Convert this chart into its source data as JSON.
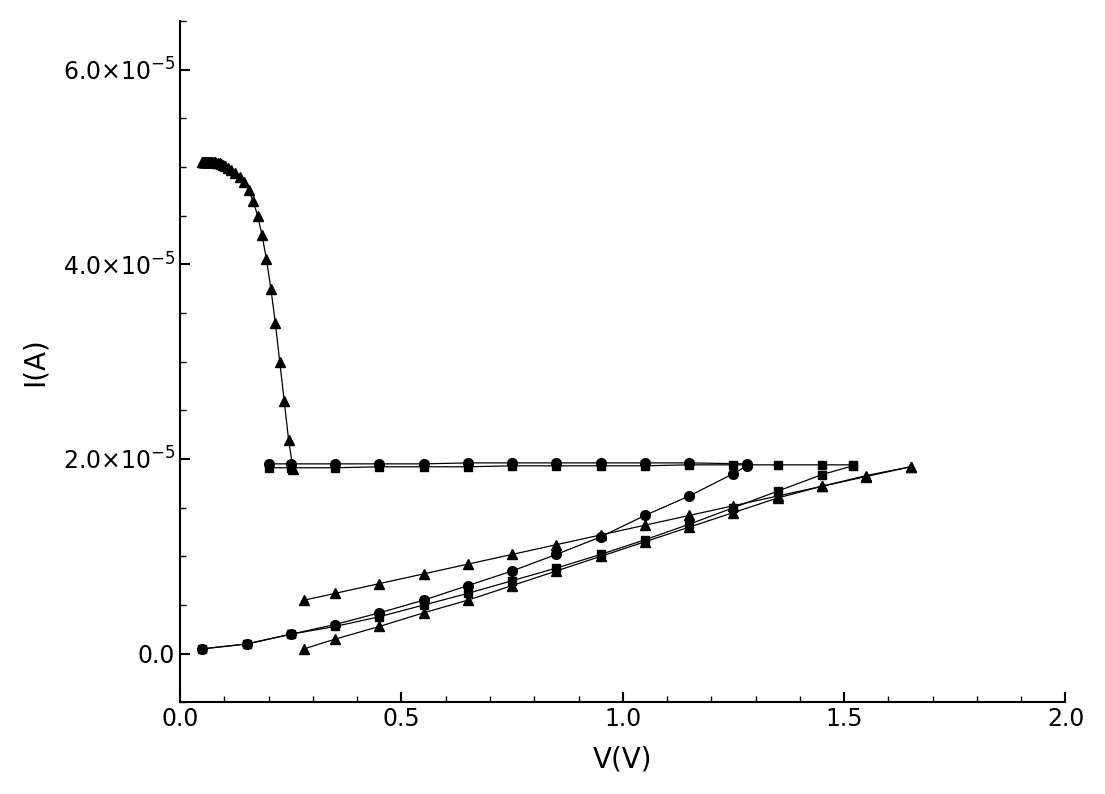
{
  "xlabel": "V(V)",
  "ylabel": "I(A)",
  "xlim": [
    0.0,
    2.0
  ],
  "ylim": [
    -5e-06,
    6.5e-05
  ],
  "yticks": [
    0.0,
    2e-05,
    4e-05,
    6e-05
  ],
  "xticks": [
    0.0,
    0.5,
    1.0,
    1.5,
    2.0
  ],
  "background_color": "#ffffff",
  "circle_fwd_v": [
    0.05,
    0.15,
    0.25,
    0.35,
    0.45,
    0.55,
    0.65,
    0.75,
    0.85,
    0.95,
    1.05,
    1.15,
    1.25,
    1.28
  ],
  "circle_fwd_i": [
    5e-07,
    1e-06,
    2e-06,
    3e-06,
    4.2e-06,
    5.5e-06,
    7e-06,
    8.5e-06,
    1.02e-05,
    1.2e-05,
    1.42e-05,
    1.62e-05,
    1.85e-05,
    1.93e-05
  ],
  "circle_rev_v": [
    1.28,
    1.15,
    1.05,
    0.95,
    0.85,
    0.75,
    0.65,
    0.55,
    0.45,
    0.35,
    0.25,
    0.2
  ],
  "circle_rev_i": [
    1.95e-05,
    1.96e-05,
    1.96e-05,
    1.96e-05,
    1.96e-05,
    1.96e-05,
    1.96e-05,
    1.95e-05,
    1.95e-05,
    1.95e-05,
    1.95e-05,
    1.95e-05
  ],
  "square_fwd_v": [
    0.05,
    0.15,
    0.25,
    0.35,
    0.45,
    0.55,
    0.65,
    0.75,
    0.85,
    0.95,
    1.05,
    1.15,
    1.25,
    1.35,
    1.45,
    1.52
  ],
  "square_fwd_i": [
    5e-07,
    1e-06,
    2e-06,
    2.8e-06,
    3.8e-06,
    5e-06,
    6.2e-06,
    7.5e-06,
    8.8e-06,
    1.02e-05,
    1.17e-05,
    1.33e-05,
    1.5e-05,
    1.67e-05,
    1.84e-05,
    1.93e-05
  ],
  "square_rev_v": [
    1.52,
    1.45,
    1.35,
    1.25,
    1.15,
    1.05,
    0.95,
    0.85,
    0.75,
    0.65,
    0.55,
    0.45,
    0.35,
    0.25,
    0.2
  ],
  "square_rev_i": [
    1.94e-05,
    1.94e-05,
    1.94e-05,
    1.94e-05,
    1.94e-05,
    1.93e-05,
    1.93e-05,
    1.93e-05,
    1.93e-05,
    1.92e-05,
    1.92e-05,
    1.92e-05,
    1.91e-05,
    1.91e-05,
    1.91e-05
  ],
  "tri_fwd_v": [
    0.28,
    0.35,
    0.45,
    0.55,
    0.65,
    0.75,
    0.85,
    0.95,
    1.05,
    1.15,
    1.25,
    1.35,
    1.45,
    1.55,
    1.65
  ],
  "tri_fwd_i": [
    5e-07,
    1.5e-06,
    2.8e-06,
    4.2e-06,
    5.5e-06,
    7e-06,
    8.5e-06,
    1e-05,
    1.15e-05,
    1.3e-05,
    1.45e-05,
    1.6e-05,
    1.72e-05,
    1.83e-05,
    1.92e-05
  ],
  "spike_v": [
    0.255,
    0.245,
    0.235,
    0.225,
    0.215,
    0.205,
    0.195,
    0.185,
    0.175,
    0.165,
    0.155,
    0.145,
    0.135,
    0.125,
    0.115,
    0.108,
    0.102,
    0.098,
    0.093,
    0.089,
    0.085,
    0.082,
    0.079,
    0.076,
    0.073,
    0.07,
    0.068,
    0.066,
    0.064,
    0.062,
    0.06,
    0.059,
    0.058,
    0.057,
    0.056,
    0.055,
    0.054,
    0.053,
    0.052,
    0.051,
    0.05
  ],
  "spike_i": [
    1.9e-05,
    2.2e-05,
    2.6e-05,
    3e-05,
    3.4e-05,
    3.75e-05,
    4.05e-05,
    4.3e-05,
    4.5e-05,
    4.65e-05,
    4.76e-05,
    4.84e-05,
    4.9e-05,
    4.94e-05,
    4.97e-05,
    4.99e-05,
    5.01e-05,
    5.02e-05,
    5.03e-05,
    5.035e-05,
    5.04e-05,
    5.045e-05,
    5.047e-05,
    5.048e-05,
    5.049e-05,
    5.05e-05,
    5.05e-05,
    5.05e-05,
    5.05e-05,
    5.05e-05,
    5.05e-05,
    5.05e-05,
    5.05e-05,
    5.05e-05,
    5.05e-05,
    5.05e-05,
    5.05e-05,
    5.05e-05,
    5.05e-05,
    5.05e-05,
    5.05e-05
  ],
  "tri_rev_v": [
    1.65,
    1.55,
    1.45,
    1.35,
    1.25,
    1.15,
    1.05,
    0.95,
    0.85,
    0.75,
    0.65,
    0.55,
    0.45,
    0.35,
    0.28
  ],
  "tri_rev_i": [
    1.92e-05,
    1.82e-05,
    1.72e-05,
    1.62e-05,
    1.52e-05,
    1.42e-05,
    1.32e-05,
    1.22e-05,
    1.12e-05,
    1.02e-05,
    9.2e-06,
    8.2e-06,
    7.2e-06,
    6.2e-06,
    5.5e-06
  ]
}
